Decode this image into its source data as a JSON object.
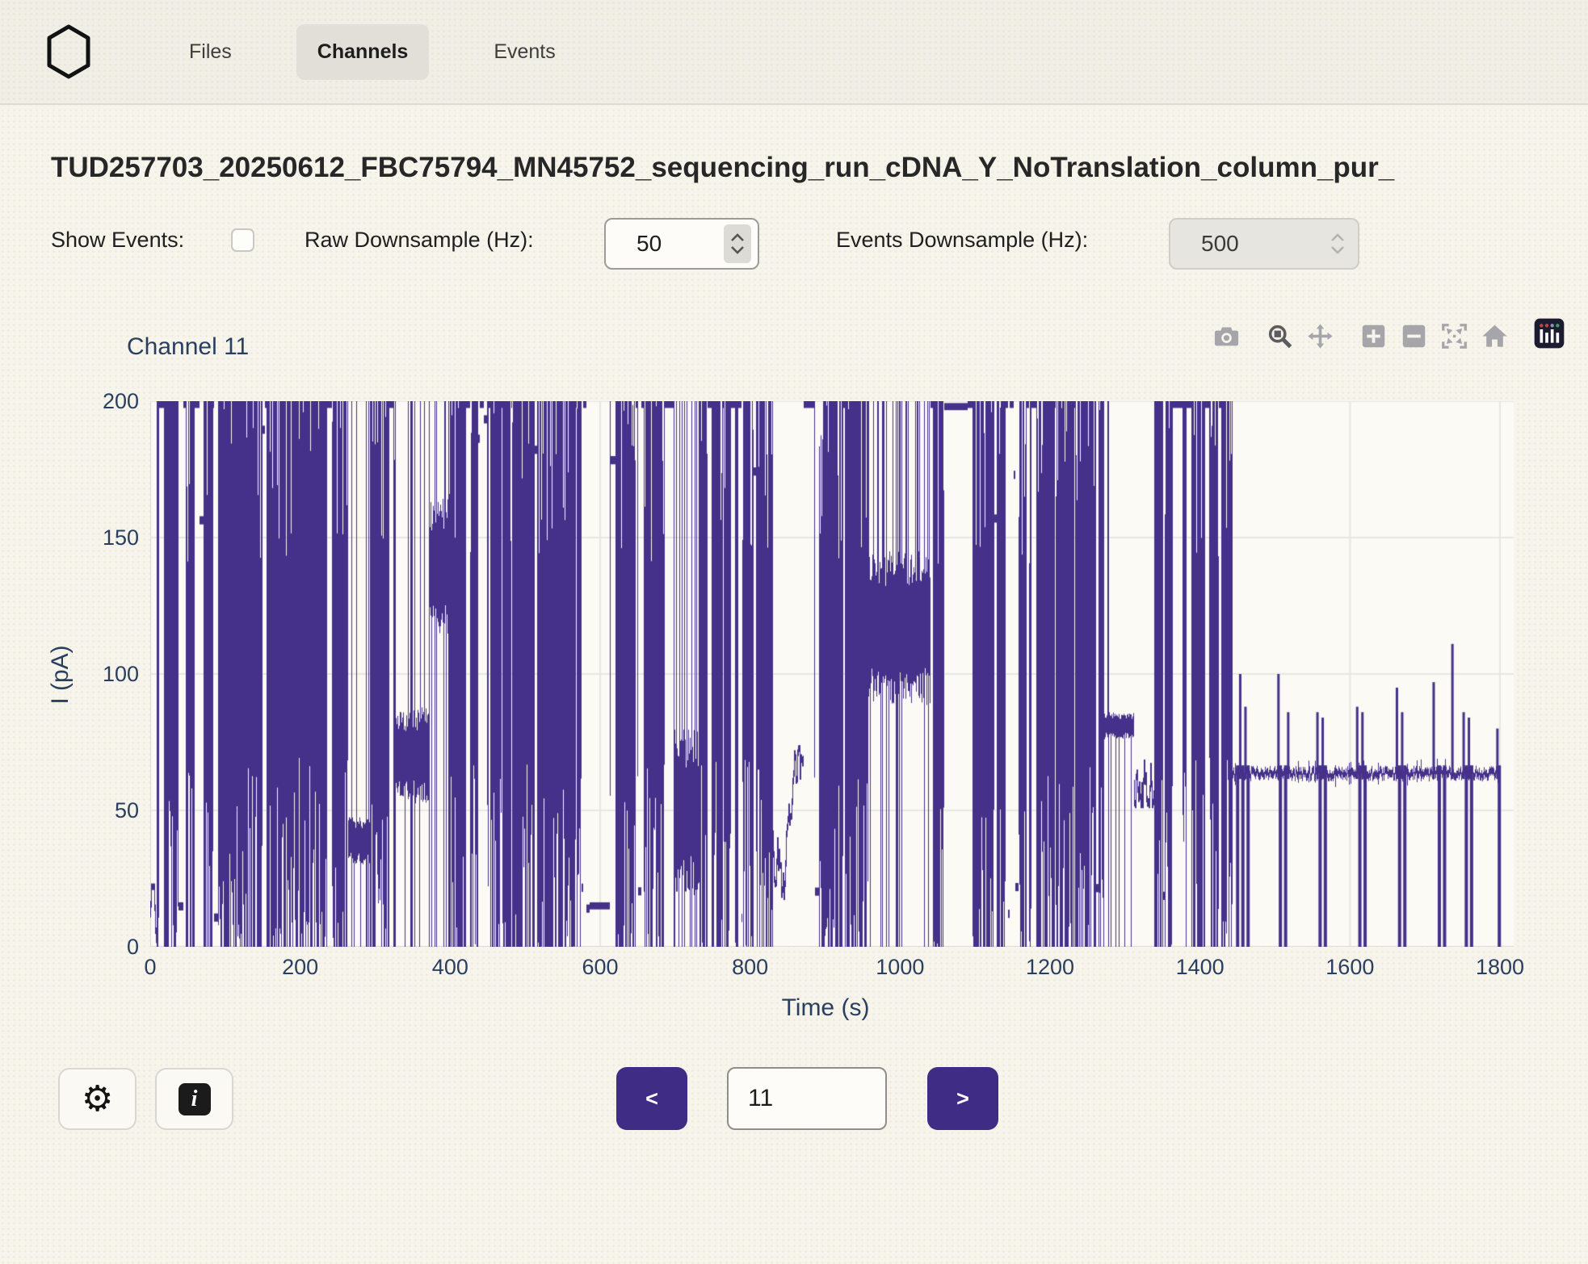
{
  "nav": {
    "logo": "hexagon-logo",
    "tabs": [
      {
        "label": "Files",
        "active": false
      },
      {
        "label": "Channels",
        "active": true
      },
      {
        "label": "Events",
        "active": false
      }
    ]
  },
  "header": {
    "title": "TUD257703_20250612_FBC75794_MN45752_sequencing_run_cDNA_Y_NoTranslation_column_pur_"
  },
  "controls": {
    "show_events_label": "Show Events:",
    "show_events_checked": false,
    "raw_downsample_label": "Raw Downsample (Hz):",
    "raw_downsample_value": "50",
    "events_downsample_label": "Events Downsample (Hz):",
    "events_downsample_value": "500",
    "events_downsample_disabled": true
  },
  "chart": {
    "title": "Channel 11",
    "modebar_icons": [
      "camera",
      "zoom",
      "pan",
      "zoom-in",
      "zoom-out",
      "autoscale",
      "reset-home",
      "plotly-logo"
    ]
  },
  "chart_data": {
    "type": "line",
    "title": "Channel 11",
    "xlabel": "Time (s)",
    "ylabel": "I (pA)",
    "xlim": [
      0,
      1800
    ],
    "ylim": [
      0,
      200
    ],
    "xticks": [
      0,
      200,
      400,
      600,
      800,
      1000,
      1200,
      1400,
      1600,
      1800
    ],
    "yticks": [
      0,
      50,
      100,
      150,
      200
    ],
    "grid": true,
    "legend": false,
    "line_color": "#46318a",
    "series_name": "channel-11-current-pA",
    "segments": [
      {
        "t0": 0,
        "t1": 8,
        "type": "wander",
        "lo": 2,
        "hi": 22
      },
      {
        "t0": 8,
        "t1": 263,
        "type": "burst"
      },
      {
        "t0": 263,
        "t1": 292,
        "type": "band",
        "lo": 30,
        "hi": 48,
        "full": 0.12
      },
      {
        "t0": 292,
        "t1": 327,
        "type": "burst"
      },
      {
        "t0": 327,
        "t1": 371,
        "type": "band",
        "lo": 52,
        "hi": 88,
        "full": 0.18
      },
      {
        "t0": 371,
        "t1": 399,
        "type": "band",
        "lo": 112,
        "hi": 166,
        "full": 0.22
      },
      {
        "t0": 399,
        "t1": 585,
        "type": "burst"
      },
      {
        "t0": 585,
        "t1": 612,
        "type": "flat",
        "level": 15
      },
      {
        "t0": 612,
        "t1": 699,
        "type": "burst"
      },
      {
        "t0": 699,
        "t1": 731,
        "type": "band",
        "lo": 18,
        "hi": 80,
        "full": 0.15
      },
      {
        "t0": 731,
        "t1": 830,
        "type": "burst"
      },
      {
        "t0": 830,
        "t1": 871,
        "type": "wander",
        "lo": 8,
        "hi": 75
      },
      {
        "t0": 871,
        "t1": 957,
        "type": "burst"
      },
      {
        "t0": 957,
        "t1": 1040,
        "type": "band",
        "lo": 88,
        "hi": 145,
        "full": 0.25
      },
      {
        "t0": 1040,
        "t1": 1058,
        "type": "burst"
      },
      {
        "t0": 1058,
        "t1": 1090,
        "type": "flat",
        "level": 198
      },
      {
        "t0": 1090,
        "t1": 1272,
        "type": "burst"
      },
      {
        "t0": 1272,
        "t1": 1312,
        "type": "band",
        "lo": 76,
        "hi": 86,
        "full": 0.04
      },
      {
        "t0": 1312,
        "t1": 1338,
        "type": "wander",
        "lo": 52,
        "hi": 68
      },
      {
        "t0": 1338,
        "t1": 1443,
        "type": "burst"
      },
      {
        "t0": 1443,
        "t1": 1800,
        "type": "baseline",
        "level": 63.5,
        "down_spikes": [
          1448,
          1455,
          1462,
          1505,
          1512,
          1558,
          1565,
          1611,
          1618,
          1664,
          1671,
          1717,
          1724,
          1753,
          1760,
          1797
        ],
        "up_spikes": [
          [
            1452,
            100
          ],
          [
            1459,
            88
          ],
          [
            1503,
            100
          ],
          [
            1516,
            86
          ],
          [
            1555,
            86
          ],
          [
            1562,
            84
          ],
          [
            1608,
            88
          ],
          [
            1615,
            86
          ],
          [
            1661,
            95
          ],
          [
            1668,
            86
          ],
          [
            1710,
            97
          ],
          [
            1735,
            111
          ],
          [
            1750,
            86
          ],
          [
            1757,
            84
          ],
          [
            1795,
            80
          ]
        ]
      }
    ]
  },
  "footer": {
    "settings_icon": "gear",
    "info_icon": "info",
    "prev_label": "<",
    "next_label": ">",
    "channel_value": "11"
  },
  "colors": {
    "page_bg": "#f6f4ed",
    "navbar_bg": "#f0eee7",
    "active_tab_bg": "#e1dfd8",
    "plot_bg": "#fbfaf5",
    "grid": "#e7e7e1",
    "zeroline": "#dcdbd4",
    "trace": "#46318a",
    "accent_button": "#3e2c85",
    "chart_text": "#2a3f5f"
  }
}
